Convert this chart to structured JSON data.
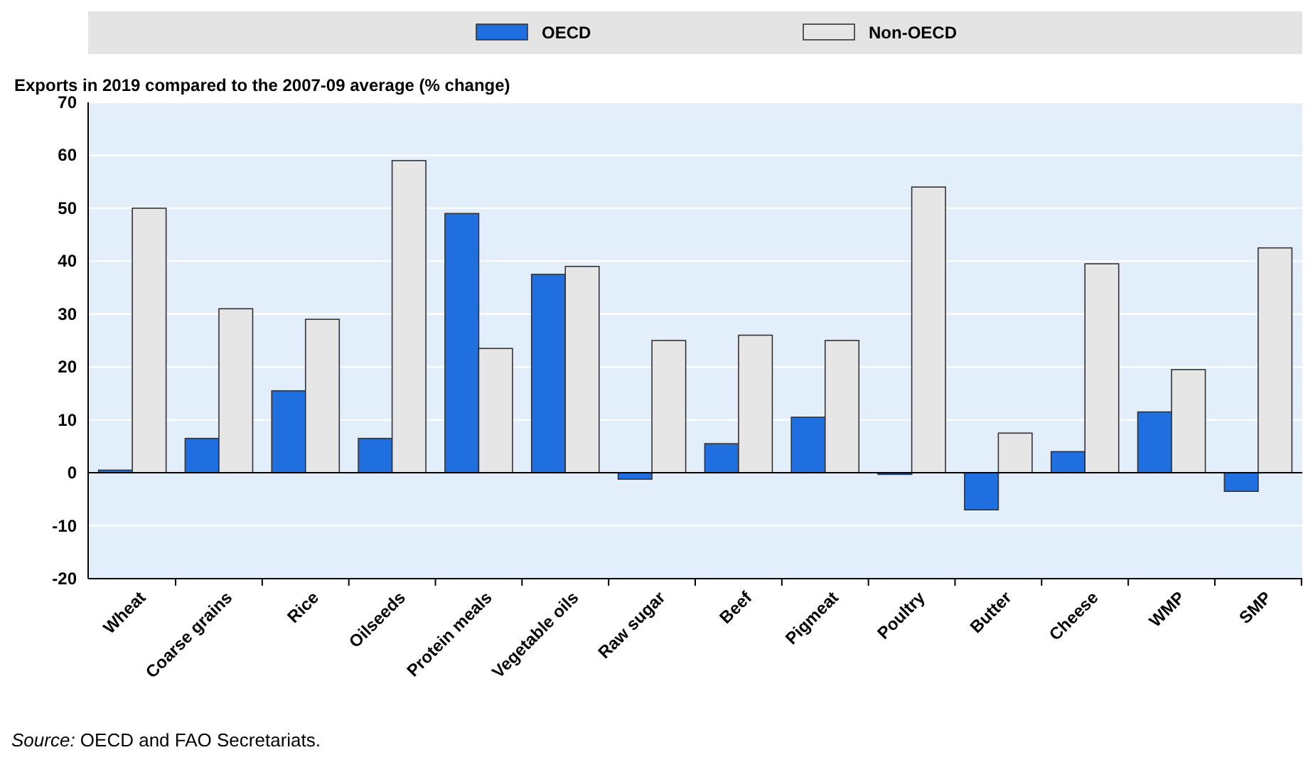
{
  "chart_data": {
    "type": "bar",
    "ylabel": "Exports in 2019 compared to the 2007-09 average (% change)",
    "categories": [
      "Wheat",
      "Coarse grains",
      "Rice",
      "Oilseeds",
      "Protein meals",
      "Vegetable oils",
      "Raw sugar",
      "Beef",
      "Pigmeat",
      "Poultry",
      "Butter",
      "Cheese",
      "WMP",
      "SMP"
    ],
    "series": [
      {
        "name": "OECD",
        "color": "#1f6fe0",
        "values": [
          0.5,
          6.5,
          15.5,
          6.5,
          49,
          37.5,
          -1.2,
          5.5,
          10.5,
          -0.3,
          -7,
          4,
          11.5,
          -3.5
        ]
      },
      {
        "name": "Non-OECD",
        "color": "#e6e6e6",
        "values": [
          50,
          31,
          29,
          59,
          23.5,
          39,
          25,
          26,
          25,
          54,
          7.5,
          39.5,
          19.5,
          42.5
        ]
      }
    ],
    "ylim": [
      -20,
      70
    ],
    "yticks": [
      -20,
      -10,
      0,
      10,
      20,
      30,
      40,
      50,
      60,
      70
    ],
    "grid": "y",
    "legend": "top",
    "annotations": [
      "Source: OECD and FAO Secretariats."
    ]
  }
}
